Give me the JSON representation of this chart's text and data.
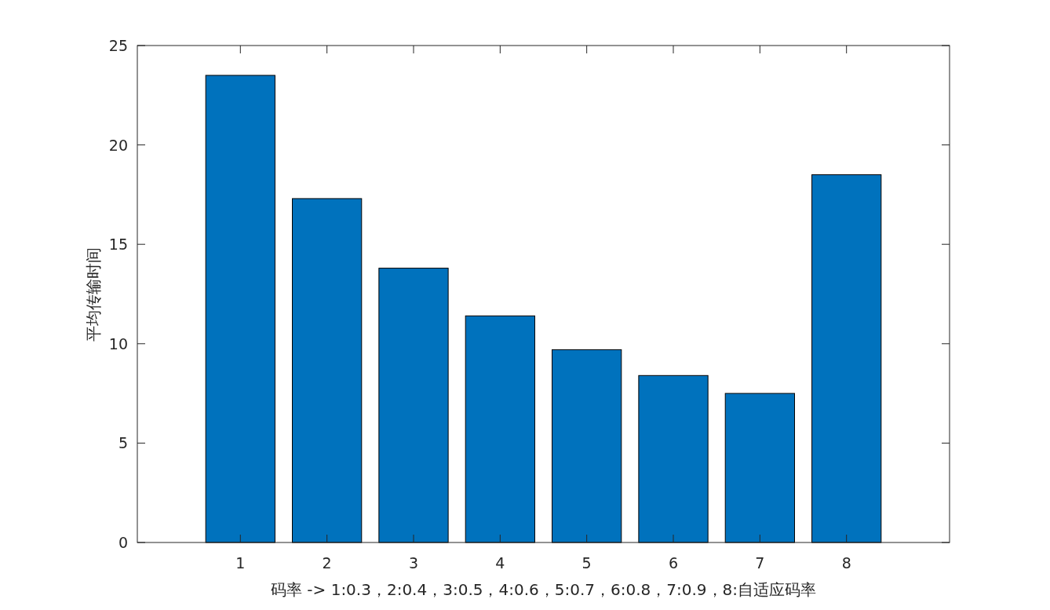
{
  "chart_data": {
    "type": "bar",
    "categories": [
      "1",
      "2",
      "3",
      "4",
      "5",
      "6",
      "7",
      "8"
    ],
    "values": [
      23.5,
      17.3,
      13.8,
      11.4,
      9.7,
      8.4,
      7.5,
      18.5
    ],
    "color": "#0072bd",
    "ylim": [
      0,
      25
    ],
    "yticks": [
      0,
      5,
      10,
      15,
      20,
      25
    ],
    "xlabel": "码率 -> 1:0.3，2:0.4，3:0.5，4:0.6，5:0.7，6:0.8，7:0.9，8:自适应码率",
    "ylabel": "平均传输时间"
  }
}
